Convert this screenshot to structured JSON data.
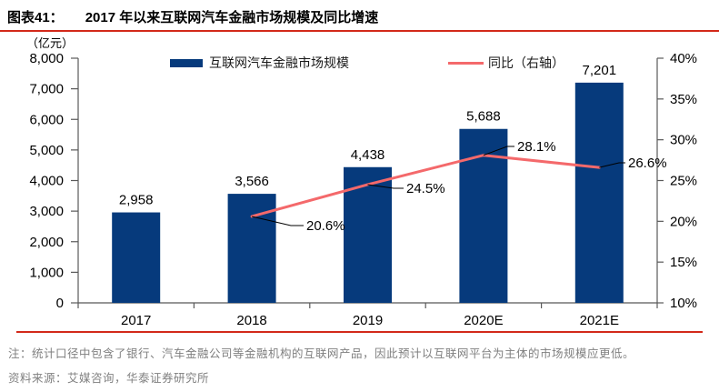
{
  "header": {
    "figure_label": "图表41：",
    "title": "2017 年以来互联网汽车金融市场规模及同比增速"
  },
  "chart_data": {
    "type": "bar",
    "subtype": "bar+line combo",
    "categories": [
      "2017",
      "2018",
      "2019",
      "2020E",
      "2021E"
    ],
    "series": [
      {
        "name": "互联网汽车金融市场规模",
        "type": "bar",
        "axis": "left",
        "color": "#063a7c",
        "values": [
          2958,
          3566,
          4438,
          5688,
          7201
        ],
        "data_labels": [
          "2,958",
          "3,566",
          "4,438",
          "5,688",
          "7,201"
        ]
      },
      {
        "name": "同比（右轴）",
        "type": "line",
        "axis": "right",
        "color": "#f4696b",
        "values": [
          null,
          20.6,
          24.5,
          28.1,
          26.6
        ],
        "data_labels": [
          null,
          "20.6%",
          "24.5%",
          "28.1%",
          "26.6%"
        ]
      }
    ],
    "left_axis": {
      "unit": "（亿元）",
      "min": 0,
      "max": 8000,
      "step": 1000,
      "tick_labels": [
        "0",
        "1,000",
        "2,000",
        "3,000",
        "4,000",
        "5,000",
        "6,000",
        "7,000",
        "8,000"
      ]
    },
    "right_axis": {
      "min": 10,
      "max": 40,
      "step": 5,
      "tick_labels": [
        "10%",
        "15%",
        "20%",
        "25%",
        "30%",
        "35%",
        "40%"
      ]
    },
    "legend_position": "top",
    "grid": false
  },
  "footer": {
    "note": "注：统计口径中包含了银行、汽车金融公司等金融机构的互联网产品，因此预计以互联网平台为主体的市场规模应更低。",
    "source": "资料来源：艾媒咨询，华泰证券研究所"
  },
  "colors": {
    "accent_rule": "#d3291a",
    "bar": "#063a7c",
    "line": "#f4696b",
    "axis": "#595959",
    "note_text": "#808080"
  }
}
